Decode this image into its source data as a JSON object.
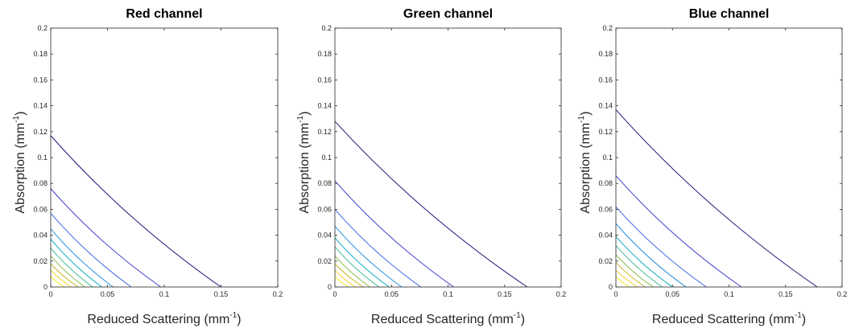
{
  "chart_data": [
    {
      "type": "line",
      "chart_subtype": "contour",
      "title": "Red channel",
      "xlabel": "Reduced Scattering (mm",
      "ylabel": "Absorption (mm",
      "unit_exponent": "-1",
      "xlim": [
        0,
        0.2
      ],
      "ylim": [
        0,
        0.2
      ],
      "xticks": [
        "0",
        "0.05",
        "0.1",
        "0.15",
        "0.2"
      ],
      "yticks": [
        "0",
        "0.02",
        "0.04",
        "0.06",
        "0.08",
        "0.1",
        "0.12",
        "0.14",
        "0.16",
        "0.18",
        "0.2"
      ],
      "grid": false,
      "series": [
        {
          "color": "#1f1479",
          "x": [
            0,
            0.15
          ],
          "y": [
            0.117,
            0
          ]
        },
        {
          "color": "#3d3ccb",
          "x": [
            0,
            0.097
          ],
          "y": [
            0.076,
            0
          ]
        },
        {
          "color": "#3f66e5",
          "x": [
            0,
            0.071
          ],
          "y": [
            0.057,
            0
          ]
        },
        {
          "color": "#248fe0",
          "x": [
            0,
            0.055
          ],
          "y": [
            0.045,
            0
          ]
        },
        {
          "color": "#08adc2",
          "x": [
            0,
            0.045
          ],
          "y": [
            0.037,
            0
          ]
        },
        {
          "color": "#3cbc8e",
          "x": [
            0,
            0.037
          ],
          "y": [
            0.03,
            0
          ]
        },
        {
          "color": "#8fbf4e",
          "x": [
            0,
            0.03
          ],
          "y": [
            0.024,
            0
          ]
        },
        {
          "color": "#c9b825",
          "x": [
            0,
            0.024
          ],
          "y": [
            0.018,
            0
          ]
        },
        {
          "color": "#f5cd1c",
          "x": [
            0,
            0.018
          ],
          "y": [
            0.013,
            0
          ]
        },
        {
          "color": "#f6e61c",
          "x": [
            0,
            0.012
          ],
          "y": [
            0.008,
            0
          ]
        }
      ]
    },
    {
      "type": "line",
      "chart_subtype": "contour",
      "title": "Green channel",
      "xlabel": "Reduced Scattering (mm",
      "ylabel": "Absorption (mm",
      "unit_exponent": "-1",
      "xlim": [
        0,
        0.2
      ],
      "ylim": [
        0,
        0.2
      ],
      "xticks": [
        "0",
        "0.05",
        "0.1",
        "0.15",
        "0.2"
      ],
      "yticks": [
        "0",
        "0.02",
        "0.04",
        "0.06",
        "0.08",
        "0.1",
        "0.12",
        "0.14",
        "0.16",
        "0.18",
        "0.2"
      ],
      "grid": false,
      "series": [
        {
          "color": "#1f1479",
          "x": [
            0,
            0.17
          ],
          "y": [
            0.128,
            0
          ]
        },
        {
          "color": "#3d3ccb",
          "x": [
            0,
            0.105
          ],
          "y": [
            0.082,
            0
          ]
        },
        {
          "color": "#3f66e5",
          "x": [
            0,
            0.076
          ],
          "y": [
            0.06,
            0
          ]
        },
        {
          "color": "#248fe0",
          "x": [
            0,
            0.059
          ],
          "y": [
            0.047,
            0
          ]
        },
        {
          "color": "#08adc2",
          "x": [
            0,
            0.048
          ],
          "y": [
            0.038,
            0
          ]
        },
        {
          "color": "#3cbc8e",
          "x": [
            0,
            0.039
          ],
          "y": [
            0.031,
            0
          ]
        },
        {
          "color": "#8fbf4e",
          "x": [
            0,
            0.031
          ],
          "y": [
            0.024,
            0
          ]
        },
        {
          "color": "#c9b825",
          "x": [
            0,
            0.025
          ],
          "y": [
            0.018,
            0
          ]
        },
        {
          "color": "#f5cd1c",
          "x": [
            0,
            0.018
          ],
          "y": [
            0.013,
            0
          ]
        },
        {
          "color": "#f6e61c",
          "x": [
            0,
            0.012
          ],
          "y": [
            0.008,
            0
          ]
        }
      ]
    },
    {
      "type": "line",
      "chart_subtype": "contour",
      "title": "Blue channel",
      "xlabel": "Reduced Scattering (mm",
      "ylabel": "Absorption (mm",
      "unit_exponent": "-1",
      "xlim": [
        0,
        0.2
      ],
      "ylim": [
        0,
        0.2
      ],
      "xticks": [
        "0",
        "0.05",
        "0.1",
        "0.15",
        "0.2"
      ],
      "yticks": [
        "0",
        "0.02",
        "0.04",
        "0.06",
        "0.08",
        "0.1",
        "0.12",
        "0.14",
        "0.16",
        "0.18",
        "0.2"
      ],
      "grid": false,
      "series": [
        {
          "color": "#1f1479",
          "x": [
            0,
            0.178
          ],
          "y": [
            0.137,
            0
          ]
        },
        {
          "color": "#3d3ccb",
          "x": [
            0,
            0.111
          ],
          "y": [
            0.086,
            0
          ]
        },
        {
          "color": "#3f66e5",
          "x": [
            0,
            0.08
          ],
          "y": [
            0.062,
            0
          ]
        },
        {
          "color": "#248fe0",
          "x": [
            0,
            0.062
          ],
          "y": [
            0.049,
            0
          ]
        },
        {
          "color": "#08adc2",
          "x": [
            0,
            0.05
          ],
          "y": [
            0.039,
            0
          ]
        },
        {
          "color": "#3cbc8e",
          "x": [
            0,
            0.041
          ],
          "y": [
            0.032,
            0
          ]
        },
        {
          "color": "#8fbf4e",
          "x": [
            0,
            0.033
          ],
          "y": [
            0.025,
            0
          ]
        },
        {
          "color": "#c9b825",
          "x": [
            0,
            0.026
          ],
          "y": [
            0.019,
            0
          ]
        },
        {
          "color": "#f5cd1c",
          "x": [
            0,
            0.019
          ],
          "y": [
            0.013,
            0
          ]
        },
        {
          "color": "#f6e61c",
          "x": [
            0,
            0.012
          ],
          "y": [
            0.008,
            0
          ]
        }
      ]
    }
  ]
}
